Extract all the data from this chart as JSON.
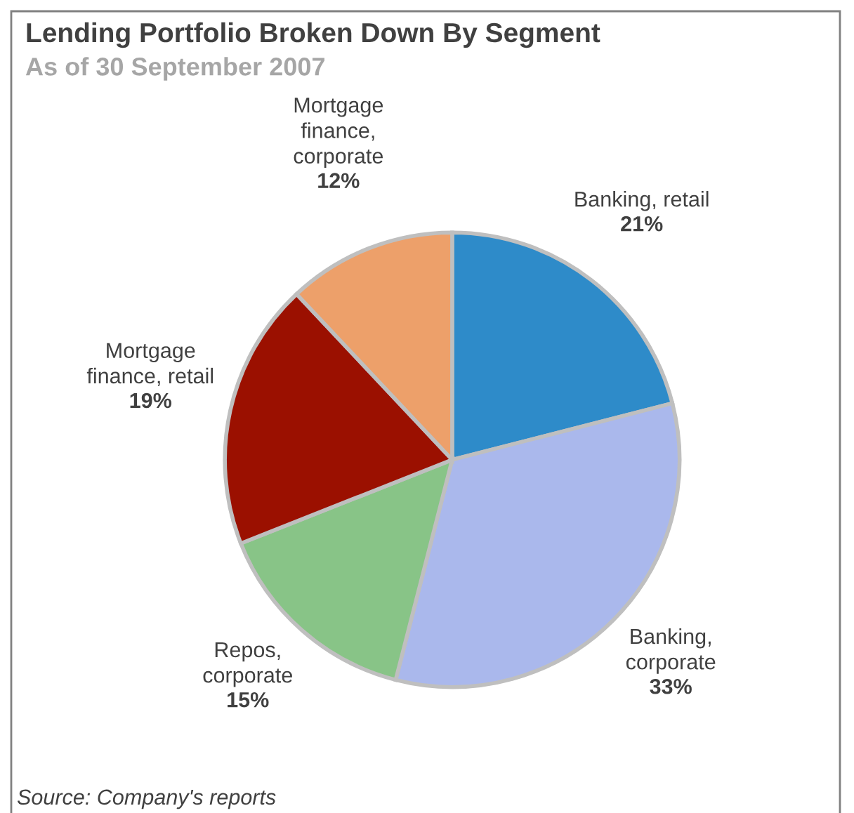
{
  "chart_data": {
    "type": "pie",
    "title": "Lending Portfolio Broken Down By Segment",
    "subtitle": "As of 30 September 2007",
    "categories": [
      "Banking, retail",
      "Banking,\ncorporate",
      "Repos,\ncorporate",
      "Mortgage\nfinance, retail",
      "Mortgage\nfinance,\ncorporate"
    ],
    "values": [
      21,
      33,
      15,
      19,
      12
    ],
    "colors": [
      "#2e8bc9",
      "#aab8ec",
      "#88c487",
      "#9b1000",
      "#eda06a"
    ],
    "value_labels": [
      "21%",
      "33%",
      "15%",
      "19%",
      "12%"
    ],
    "legend": false,
    "annotations": [
      "Source: Company's reports"
    ]
  }
}
